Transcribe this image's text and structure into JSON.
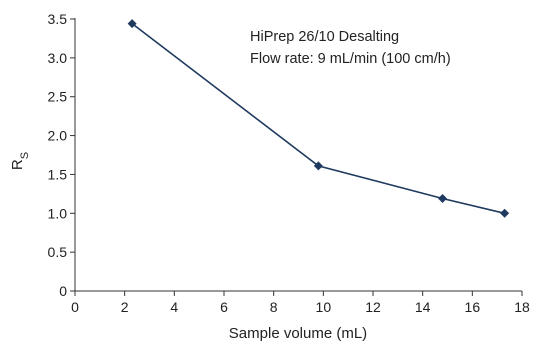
{
  "chart_data": {
    "type": "line",
    "title": "",
    "xlabel": "Sample volume (mL)",
    "ylabel": "R",
    "ylabel_subscript": "S",
    "xlim": [
      0,
      18
    ],
    "ylim": [
      0,
      3.5
    ],
    "x_ticks": [
      "0",
      "2",
      "4",
      "6",
      "8",
      "10",
      "12",
      "14",
      "16",
      "18"
    ],
    "y_ticks": [
      "0",
      "0.5",
      "1.0",
      "1.5",
      "2.0",
      "2.5",
      "3.0",
      "3.5"
    ],
    "grid": false,
    "legend": "none",
    "annotation_lines": [
      "HiPrep 26/10 Desalting",
      "Flow rate: 9 mL/min (100 cm/h)"
    ],
    "marker": "diamond",
    "line_color": "#1f3a5f",
    "series": [
      {
        "x": [
          2.3,
          9.8,
          14.8,
          17.3
        ],
        "y": [
          3.44,
          1.61,
          1.19,
          1.0
        ]
      }
    ]
  }
}
